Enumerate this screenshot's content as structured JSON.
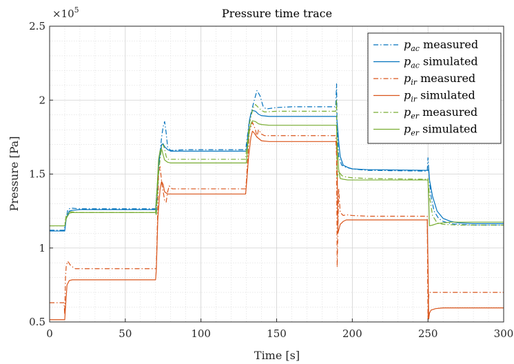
{
  "chart_data": {
    "type": "line",
    "title": "Pressure time trace",
    "xlabel": "Time [s]",
    "ylabel": "Pressure [Pa]",
    "y_exponent_label": "×10",
    "y_exponent_power": "5",
    "xlim": [
      0,
      300
    ],
    "ylim": [
      0.5,
      2.5
    ],
    "y_scale_factor": 100000,
    "x_ticks": [
      0,
      50,
      100,
      150,
      200,
      250,
      300
    ],
    "x_tick_labels": [
      "0",
      "50",
      "100",
      "150",
      "200",
      "250",
      "300"
    ],
    "y_ticks": [
      0.5,
      1,
      1.5,
      2,
      2.5
    ],
    "y_tick_labels": [
      "0.5",
      "1",
      "1.5",
      "2",
      "2.5"
    ],
    "grid": true,
    "minor_grid": true,
    "legend_position": "top-right",
    "series": [
      {
        "name": "measured",
        "symbol": "p",
        "subscript": "ac",
        "color": "#0072BD",
        "dash": "dashdot",
        "x": [
          0,
          9.5,
          10,
          11,
          12,
          14,
          20,
          70,
          70.5,
          72,
          73,
          74,
          75,
          76,
          77,
          78,
          80,
          90,
          129.5,
          130,
          132,
          134,
          135,
          137,
          139,
          141,
          143,
          150,
          160,
          170,
          189,
          189.6,
          190,
          191,
          193,
          196,
          200,
          210,
          249.5,
          250,
          251,
          252,
          254,
          257,
          260,
          265,
          270,
          280,
          290,
          300
        ],
        "y": [
          1.12,
          1.12,
          1.14,
          1.2,
          1.26,
          1.27,
          1.265,
          1.265,
          1.23,
          1.55,
          1.65,
          1.75,
          1.82,
          1.855,
          1.78,
          1.68,
          1.66,
          1.665,
          1.665,
          1.7,
          1.86,
          1.95,
          1.99,
          2.065,
          2.03,
          1.96,
          1.94,
          1.95,
          1.955,
          1.955,
          1.955,
          2.11,
          1.8,
          1.62,
          1.56,
          1.545,
          1.535,
          1.525,
          1.52,
          1.61,
          1.45,
          1.35,
          1.25,
          1.2,
          1.18,
          1.165,
          1.16,
          1.155,
          1.155,
          1.155
        ]
      },
      {
        "name": "simulated",
        "symbol": "p",
        "subscript": "ac",
        "color": "#0072BD",
        "dash": "solid",
        "x": [
          0,
          10,
          11,
          13,
          15,
          20,
          70,
          71,
          72,
          73,
          74,
          75,
          76,
          78,
          80,
          90,
          130,
          131,
          132,
          133,
          134,
          136,
          138,
          140,
          145,
          189.5,
          190,
          191,
          192,
          194,
          197,
          200,
          210,
          250,
          250.5,
          251,
          253,
          256,
          260,
          265,
          270,
          280,
          300
        ],
        "y": [
          1.115,
          1.115,
          1.2,
          1.25,
          1.255,
          1.26,
          1.26,
          1.4,
          1.56,
          1.64,
          1.7,
          1.705,
          1.685,
          1.665,
          1.655,
          1.655,
          1.655,
          1.76,
          1.86,
          1.91,
          1.93,
          1.925,
          1.905,
          1.895,
          1.89,
          1.89,
          1.85,
          1.72,
          1.62,
          1.56,
          1.545,
          1.535,
          1.53,
          1.525,
          1.53,
          1.46,
          1.35,
          1.25,
          1.2,
          1.18,
          1.17,
          1.165,
          1.165
        ]
      },
      {
        "name": "measured",
        "symbol": "p",
        "subscript": "ir",
        "color": "#D95319",
        "dash": "dashdot",
        "x": [
          0,
          9.5,
          10,
          10.5,
          11,
          12,
          14,
          17,
          20,
          30,
          70,
          70.5,
          72,
          73,
          74,
          76,
          77,
          78,
          79,
          81,
          84,
          90,
          129.5,
          130,
          132,
          134,
          136,
          137,
          138,
          140,
          142,
          145,
          160,
          189,
          189.6,
          190,
          191,
          192,
          194,
          196,
          200,
          210,
          249.5,
          250,
          250.5,
          251,
          252,
          255,
          260,
          270,
          300
        ],
        "y": [
          0.63,
          0.63,
          0.55,
          0.8,
          0.88,
          0.91,
          0.88,
          0.86,
          0.86,
          0.86,
          0.86,
          0.86,
          1.5,
          1.55,
          1.45,
          1.32,
          1.31,
          1.38,
          1.42,
          1.4,
          1.4,
          1.4,
          1.4,
          1.45,
          1.79,
          1.85,
          1.8,
          1.75,
          1.8,
          1.77,
          1.76,
          1.76,
          1.76,
          1.76,
          1.62,
          0.87,
          1.4,
          1.24,
          1.22,
          1.225,
          1.22,
          1.215,
          1.215,
          0.52,
          0.68,
          0.7,
          0.7,
          0.7,
          0.7,
          0.7,
          0.7
        ]
      },
      {
        "name": "simulated",
        "symbol": "p",
        "subscript": "ir",
        "color": "#D95319",
        "dash": "solid",
        "x": [
          0,
          10,
          10.5,
          11.5,
          13,
          15,
          20,
          70,
          70.5,
          71.5,
          73,
          74,
          75,
          76,
          78,
          80,
          90,
          129.5,
          130,
          131.5,
          133,
          134,
          135,
          137,
          140,
          145,
          189.5,
          190,
          190.5,
          191,
          192,
          194,
          196,
          200,
          210,
          249.5,
          250,
          250.5,
          251,
          252,
          255,
          260,
          300
        ],
        "y": [
          0.515,
          0.515,
          0.6,
          0.75,
          0.78,
          0.785,
          0.785,
          0.785,
          0.85,
          1.2,
          1.4,
          1.45,
          1.43,
          1.38,
          1.365,
          1.365,
          1.365,
          1.365,
          1.42,
          1.62,
          1.75,
          1.79,
          1.78,
          1.75,
          1.725,
          1.72,
          1.72,
          1.55,
          1.1,
          1.12,
          1.16,
          1.18,
          1.19,
          1.19,
          1.19,
          1.19,
          0.9,
          0.52,
          0.56,
          0.58,
          0.59,
          0.595,
          0.595
        ]
      },
      {
        "name": "measured",
        "symbol": "p",
        "subscript": "er",
        "color": "#77AC30",
        "dash": "dashdot",
        "x": [
          0,
          9.5,
          10,
          11,
          12,
          14,
          20,
          70,
          70.5,
          72,
          73,
          74,
          75,
          76,
          77,
          78,
          80,
          90,
          129.5,
          130,
          132,
          134,
          135,
          136,
          138,
          140,
          142,
          150,
          160,
          189,
          189.6,
          190,
          191,
          193,
          196,
          200,
          210,
          249.5,
          250,
          251,
          253,
          256,
          260,
          270,
          300
        ],
        "y": [
          1.15,
          1.15,
          1.16,
          1.22,
          1.24,
          1.245,
          1.24,
          1.24,
          1.22,
          1.5,
          1.6,
          1.68,
          1.7,
          1.67,
          1.62,
          1.6,
          1.6,
          1.6,
          1.6,
          1.66,
          1.84,
          1.93,
          1.96,
          1.97,
          1.95,
          1.93,
          1.92,
          1.925,
          1.925,
          1.925,
          2.0,
          1.48,
          1.52,
          1.49,
          1.48,
          1.475,
          1.47,
          1.465,
          1.47,
          1.35,
          1.22,
          1.17,
          1.16,
          1.155,
          1.155
        ]
      },
      {
        "name": "simulated",
        "symbol": "p",
        "subscript": "er",
        "color": "#77AC30",
        "dash": "solid",
        "x": [
          0,
          10,
          11,
          13,
          15,
          20,
          70,
          71,
          72,
          73,
          74,
          75,
          76,
          78,
          80,
          90,
          130,
          131,
          132,
          133,
          134,
          136,
          138,
          140,
          145,
          189.5,
          190,
          191,
          192,
          194,
          197,
          200,
          210,
          250,
          250.5,
          251,
          253,
          256,
          260,
          265,
          270,
          300
        ],
        "y": [
          1.15,
          1.15,
          1.2,
          1.235,
          1.24,
          1.24,
          1.24,
          1.4,
          1.6,
          1.66,
          1.67,
          1.63,
          1.595,
          1.58,
          1.575,
          1.575,
          1.575,
          1.7,
          1.8,
          1.84,
          1.86,
          1.855,
          1.84,
          1.835,
          1.83,
          1.83,
          1.7,
          1.53,
          1.47,
          1.465,
          1.46,
          1.46,
          1.46,
          1.46,
          1.34,
          1.15,
          1.155,
          1.165,
          1.17,
          1.175,
          1.175,
          1.175
        ]
      }
    ]
  }
}
